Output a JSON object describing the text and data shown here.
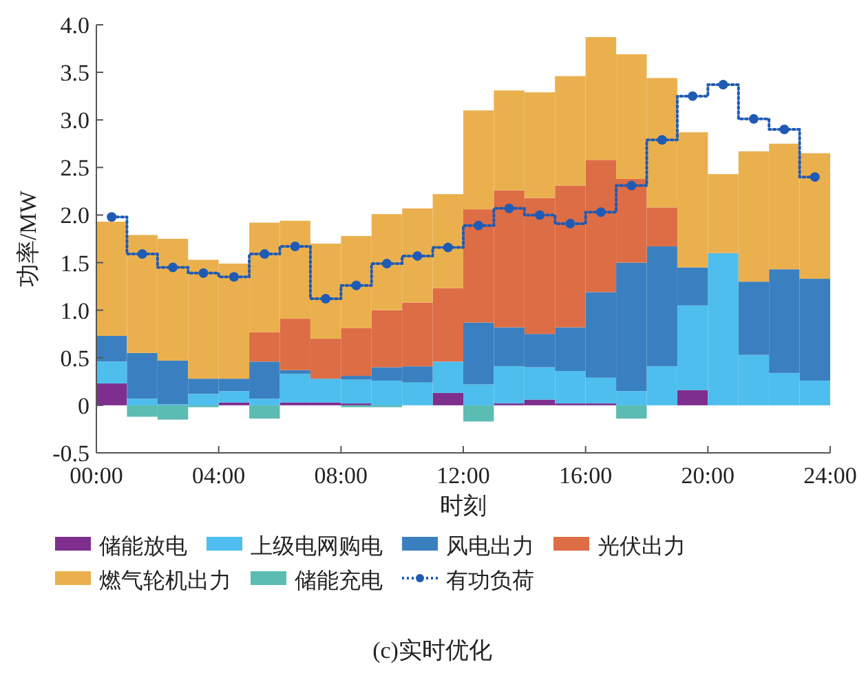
{
  "chart_data": {
    "type": "bar",
    "stacked": true,
    "xlabel": "时刻",
    "ylabel": "功率/MW",
    "x": [
      0.5,
      1.5,
      2.5,
      3.5,
      4.5,
      5.5,
      6.5,
      7.5,
      8.5,
      9.5,
      10.5,
      11.5,
      12.5,
      13.5,
      14.5,
      15.5,
      16.5,
      17.5,
      18.5,
      19.5,
      20.5,
      21.5,
      22.5,
      23.5
    ],
    "xlim": [
      0,
      24
    ],
    "xticks": [
      {
        "value": 0,
        "label": "00:00"
      },
      {
        "value": 4,
        "label": "04:00"
      },
      {
        "value": 8,
        "label": "08:00"
      },
      {
        "value": 12,
        "label": "12:00"
      },
      {
        "value": 16,
        "label": "16:00"
      },
      {
        "value": 20,
        "label": "20:00"
      },
      {
        "value": 24,
        "label": "24:00"
      }
    ],
    "ylim": [
      -0.5,
      4
    ],
    "yticks": [
      -0.5,
      0,
      0.5,
      {
        "value": 1,
        "label": "1.0"
      },
      1.5,
      {
        "value": 2,
        "label": "2.0"
      },
      2.5,
      {
        "value": 3,
        "label": "3.0"
      },
      3.5,
      {
        "value": 4,
        "label": "4.0"
      }
    ],
    "grid": false,
    "legend": "bottom",
    "series": [
      {
        "name": "储能放电",
        "color": "#7e2f8e",
        "values": [
          0.23,
          0,
          0,
          0,
          0.03,
          0,
          0.03,
          0.03,
          0.02,
          0,
          0,
          0.13,
          0,
          0.02,
          0.06,
          0.02,
          0.02,
          0,
          0,
          0.16,
          0,
          0,
          0,
          0
        ]
      },
      {
        "name": "上级电网购电",
        "color": "#4dbeee",
        "values": [
          0.23,
          0.07,
          0.01,
          0.12,
          0.12,
          0.07,
          0.3,
          0.25,
          0.25,
          0.26,
          0.24,
          0.33,
          0.22,
          0.39,
          0.34,
          0.34,
          0.27,
          0.15,
          0.41,
          0.89,
          1.6,
          0.53,
          0.34,
          0.26
        ]
      },
      {
        "name": "风电出力",
        "color": "#3a80c0",
        "values": [
          0.27,
          0.48,
          0.46,
          0.16,
          0.13,
          0.39,
          0.04,
          0,
          0.04,
          0.14,
          0.17,
          0,
          0.65,
          0.41,
          0.35,
          0.46,
          0.9,
          1.35,
          1.26,
          0.4,
          0,
          0.77,
          1.09,
          1.07
        ]
      },
      {
        "name": "光伏出力",
        "color": "#dd6d45",
        "values": [
          0,
          0,
          0,
          0,
          0,
          0.31,
          0.54,
          0.42,
          0.5,
          0.6,
          0.67,
          0.77,
          1.19,
          1.44,
          1.43,
          1.49,
          1.39,
          0.88,
          0.41,
          0,
          0,
          0,
          0,
          0
        ]
      },
      {
        "name": "燃气轮机出力",
        "color": "#ebb04e",
        "values": [
          1.2,
          1.24,
          1.28,
          1.25,
          1.21,
          1.15,
          1.03,
          1.0,
          0.97,
          1.01,
          0.99,
          0.99,
          1.04,
          1.05,
          1.11,
          1.15,
          1.29,
          1.31,
          1.36,
          1.42,
          0.83,
          1.37,
          1.32,
          1.32
        ]
      },
      {
        "name": "储能充电",
        "color": "#5bbcb4",
        "values": [
          0,
          -0.12,
          -0.15,
          -0.02,
          0,
          -0.14,
          0,
          0,
          -0.02,
          -0.02,
          0,
          0,
          -0.17,
          0,
          0,
          0,
          0,
          -0.14,
          0,
          0,
          0,
          0,
          0,
          0
        ]
      },
      {
        "name": "有功负荷",
        "type": "step",
        "color": "#1f5bb5",
        "line_style": "dotted",
        "marker": "circle",
        "values": [
          1.98,
          1.59,
          1.45,
          1.39,
          1.35,
          1.59,
          1.67,
          1.12,
          1.26,
          1.49,
          1.57,
          1.66,
          1.89,
          2.07,
          2.0,
          1.91,
          2.03,
          2.31,
          2.79,
          3.25,
          3.37,
          3.01,
          2.9,
          2.4
        ]
      }
    ],
    "annotations": [
      "(c)实时优化"
    ]
  }
}
